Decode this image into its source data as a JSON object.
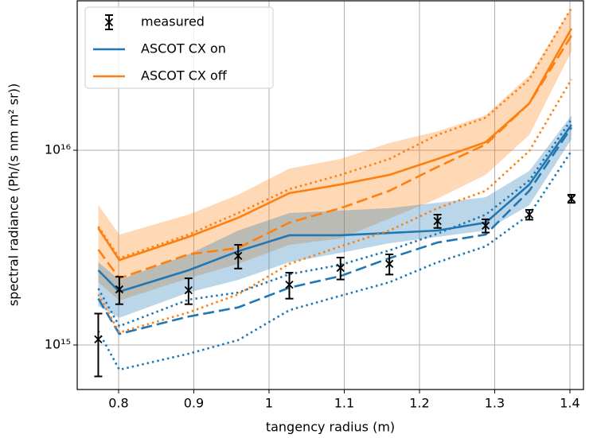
{
  "chart_data": {
    "type": "line",
    "xlabel": "tangency radius (m)",
    "ylabel": "spectral radiance (Ph/(s nm m² sr))",
    "x": [
      0.773,
      0.801,
      0.893,
      0.959,
      1.027,
      1.095,
      1.16,
      1.224,
      1.288,
      1.346,
      1.402
    ],
    "xlim": [
      0.745,
      1.418
    ],
    "ylim": [
      591000000000000.0,
      5.85e+16
    ],
    "xticks": [
      0.8,
      0.9,
      1.0,
      1.1,
      1.2,
      1.3,
      1.4
    ],
    "yticks": [
      {
        "value": 1000000000000000.0,
        "label": "10¹⁵"
      },
      {
        "value": 1e+16,
        "label": "10¹⁶"
      }
    ],
    "yscale": "log",
    "grid": true,
    "legend": "upper left",
    "series": [
      {
        "name": "measured",
        "color": "#000000",
        "marker": "x",
        "values": [
          1070000000000000.0,
          1930000000000000.0,
          1910000000000000.0,
          2870000000000000.0,
          2040000000000000.0,
          2490000000000000.0,
          2610000000000000.0,
          4330000000000000.0,
          4100000000000000.0,
          4670000000000000.0,
          5640000000000000.0
        ],
        "errors": [
          380000000000000.0,
          310000000000000.0,
          290000000000000.0,
          400000000000000.0,
          310000000000000.0,
          320000000000000.0,
          310000000000000.0,
          340000000000000.0,
          320000000000000.0,
          270000000000000.0,
          270000000000000.0
        ]
      },
      {
        "name": "ASCOT CX on",
        "color": "#1f77b4",
        "linestyle": "solid",
        "values": [
          2420000000000000.0,
          1880000000000000.0,
          2420000000000000.0,
          3030000000000000.0,
          3660000000000000.0,
          3660000000000000.0,
          3760000000000000.0,
          3870000000000000.0,
          4250000000000000.0,
          6670000000000000.0,
          1.35e+16
        ]
      },
      {
        "name": "ASCOT CX off",
        "color": "#ff7f0e",
        "linestyle": "solid",
        "values": [
          3980000000000000.0,
          2730000000000000.0,
          3590000000000000.0,
          4500000000000000.0,
          6020000000000000.0,
          6670000000000000.0,
          7470000000000000.0,
          9020000000000000.0,
          1.1e+16,
          1.74e+16,
          4.21e+16
        ]
      },
      {
        "color": "#1f77b4",
        "linestyle": "dashed",
        "values": [
          1730000000000000.0,
          1140000000000000.0,
          1400000000000000.0,
          1560000000000000.0,
          1970000000000000.0,
          2260000000000000.0,
          2790000000000000.0,
          3360000000000000.0,
          3690000000000000.0,
          6190000000000000.0,
          1.31e+16
        ]
      },
      {
        "color": "#ff7f0e",
        "linestyle": "dashed",
        "values": [
          3090000000000000.0,
          2200000000000000.0,
          2920000000000000.0,
          3150000000000000.0,
          4250000000000000.0,
          5040000000000000.0,
          6190000000000000.0,
          8210000000000000.0,
          1.07e+16,
          1.74e+16,
          3.87e+16
        ]
      },
      {
        "color": "#1f77b4",
        "linestyle": "dotted",
        "values": [
          1180000000000000.0,
          747000000000000.0,
          902000000000000.0,
          1060000000000000.0,
          1510000000000000.0,
          1790000000000000.0,
          2100000000000000.0,
          2660000000000000.0,
          3210000000000000.0,
          4670000000000000.0,
          9910000000000000.0
        ]
      },
      {
        "color": "#1f77b4",
        "linestyle": "dotted",
        "values": [
          1950000000000000.0,
          1250000000000000.0,
          1710000000000000.0,
          1860000000000000.0,
          2310000000000000.0,
          2580000000000000.0,
          3060000000000000.0,
          3730000000000000.0,
          4670000000000000.0,
          7000000000000000.0,
          1.44e+16
        ]
      },
      {
        "color": "#ff7f0e",
        "linestyle": "dotted",
        "values": [
          1820000000000000.0,
          1160000000000000.0,
          1470000000000000.0,
          1820000000000000.0,
          2610000000000000.0,
          3210000000000000.0,
          3870000000000000.0,
          5040000000000000.0,
          6190000000000000.0,
          9910000000000000.0,
          2.31e+16
        ]
      },
      {
        "color": "#ff7f0e",
        "linestyle": "dotted",
        "values": [
          4060000000000000.0,
          2790000000000000.0,
          3690000000000000.0,
          4760000000000000.0,
          6310000000000000.0,
          7470000000000000.0,
          9020000000000000.0,
          1.2e+16,
          1.47e+16,
          2.31e+16,
          5.38e+16
        ]
      }
    ],
    "bands": [
      {
        "color": "#ff7f0e",
        "lower": [
          2100000000000000.0,
          1690000000000000.0,
          2200000000000000.0,
          2610000000000000.0,
          3270000000000000.0,
          3520000000000000.0,
          4460000000000000.0,
          5640000000000000.0,
          7470000000000000.0,
          1.2e+16,
          3.21e+16
        ],
        "upper": [
          5230000000000000.0,
          3690000000000000.0,
          4670000000000000.0,
          5910000000000000.0,
          8050000000000000.0,
          9020000000000000.0,
          1.09e+16,
          1.25e+16,
          1.51e+16,
          2.42e+16,
          5.38e+16
        ]
      },
      {
        "color": "#1f77b4",
        "lower": [
          1585000000000000.0,
          1380000000000000.0,
          1860000000000000.0,
          2160000000000000.0,
          2660000000000000.0,
          2970000000000000.0,
          3330000000000000.0,
          3590000000000000.0,
          3870000000000000.0,
          5230000000000000.0,
          1.14e+16
        ],
        "upper": [
          2660000000000000.0,
          2160000000000000.0,
          2920000000000000.0,
          3870000000000000.0,
          4760000000000000.0,
          4900000000000000.0,
          5040000000000000.0,
          5380000000000000.0,
          5740000000000000.0,
          7830000000000000.0,
          1.51e+16
        ]
      }
    ]
  }
}
